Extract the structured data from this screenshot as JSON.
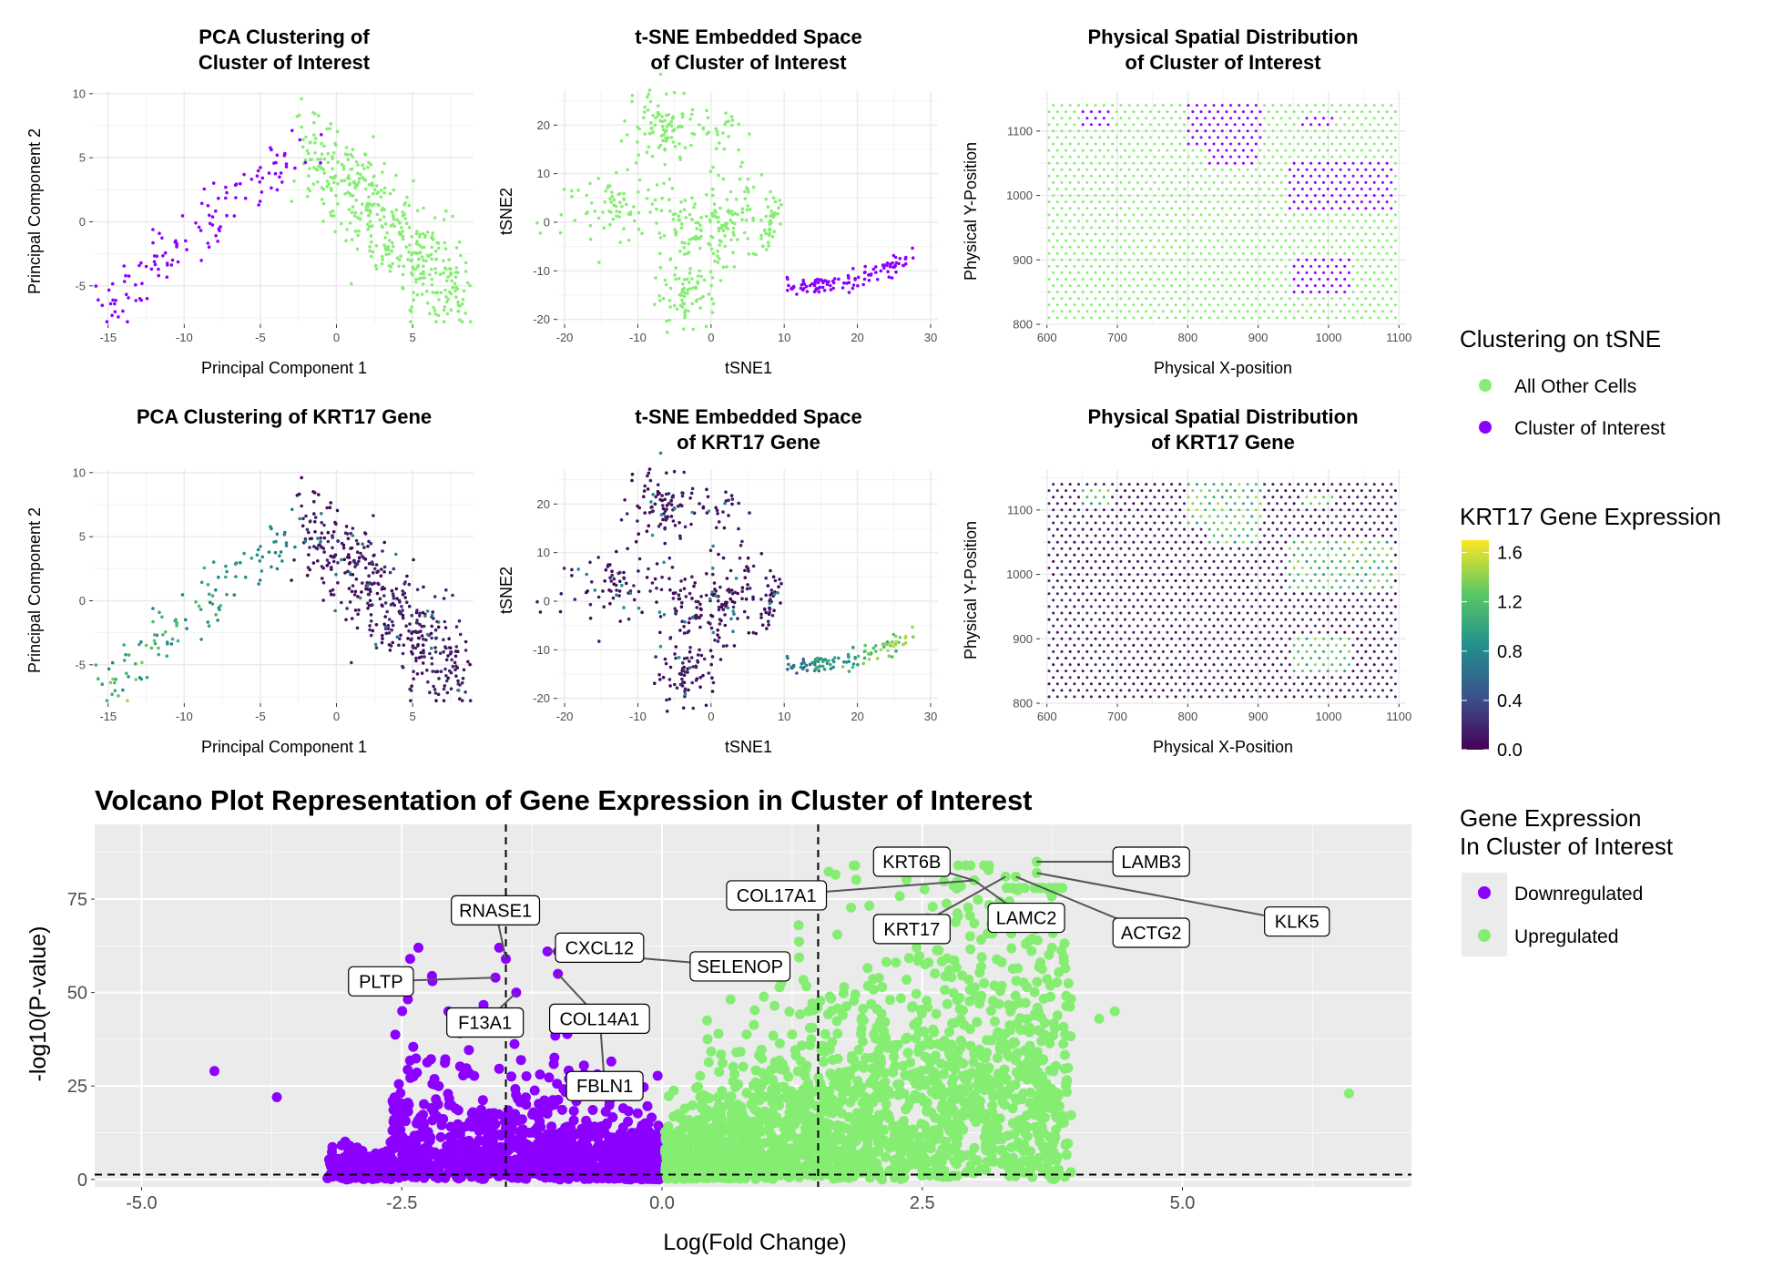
{
  "colors": {
    "cluster_of_interest": "#8B00FF",
    "all_other_cells": "#85EE72",
    "downregulated": "#8B00FF",
    "upregulated": "#85EE72",
    "viridis": [
      "#440154",
      "#3B528B",
      "#21908C",
      "#5DC863",
      "#FDE725"
    ]
  },
  "legends": {
    "clustering": {
      "title": "Clustering on tSNE",
      "items": [
        {
          "label": "All Other Cells",
          "color": "#85EE72"
        },
        {
          "label": "Cluster of Interest",
          "color": "#8B00FF"
        }
      ]
    },
    "krt17": {
      "title": "KRT17 Gene Expression",
      "ticks": [
        "1.6",
        "1.2",
        "0.8",
        "0.4",
        "0.0"
      ],
      "range": [
        0,
        1.7
      ]
    },
    "volcano": {
      "title_line1": "Gene Expression",
      "title_line2": "In Cluster of Interest",
      "items": [
        {
          "label": "Downregulated",
          "color": "#8B00FF"
        },
        {
          "label": "Upregulated",
          "color": "#85EE72"
        }
      ]
    }
  },
  "chart_data": [
    {
      "type": "scatter",
      "title_line1": "PCA Clustering of",
      "title_line2": "Cluster of Interest",
      "xlabel": "Principal Component 1",
      "ylabel": "Principal Component 2",
      "xlim": [
        -16,
        9
      ],
      "ylim": [
        -8,
        10.2
      ],
      "xticks": [
        "-15",
        "-10",
        "-5",
        "0",
        "5"
      ],
      "yticks": [
        "10",
        "5",
        "0",
        "-5"
      ],
      "color_by": "cluster"
    },
    {
      "type": "scatter",
      "title_line1": "t-SNE Embedded Space",
      "title_line2": "of Cluster of Interest",
      "xlabel": "tSNE1",
      "ylabel": "tSNE2",
      "xlim": [
        -21,
        31
      ],
      "ylim": [
        -21,
        27
      ],
      "xticks": [
        "-20",
        "-10",
        "0",
        "10",
        "20",
        "30"
      ],
      "yticks": [
        "20",
        "10",
        "0",
        "-10",
        "-20"
      ],
      "color_by": "cluster"
    },
    {
      "type": "scatter",
      "title_line1": "Physical Spatial Distribution",
      "title_line2": "of Cluster of Interest",
      "xlabel": "Physical X-position",
      "ylabel": "Physical Y-Position",
      "xlim": [
        590,
        1110
      ],
      "ylim": [
        800,
        1162
      ],
      "xticks": [
        "600",
        "700",
        "800",
        "900",
        "1000",
        "1100"
      ],
      "yticks": [
        "1100",
        "1000",
        "900",
        "800"
      ],
      "color_by": "cluster"
    },
    {
      "type": "scatter",
      "title_line1": "PCA Clustering of KRT17 Gene",
      "title_line2": "",
      "xlabel": "Principal Component 1",
      "ylabel": "Principal Component 2",
      "xlim": [
        -16,
        9
      ],
      "ylim": [
        -8,
        10.2
      ],
      "xticks": [
        "-15",
        "-10",
        "-5",
        "0",
        "5"
      ],
      "yticks": [
        "10",
        "5",
        "0",
        "-5"
      ],
      "color_by": "expression"
    },
    {
      "type": "scatter",
      "title_line1": "t-SNE Embedded Space",
      "title_line2": "of KRT17 Gene",
      "xlabel": "tSNE1",
      "ylabel": "tSNE2",
      "xlim": [
        -21,
        31
      ],
      "ylim": [
        -21,
        27
      ],
      "xticks": [
        "-20",
        "-10",
        "0",
        "10",
        "20",
        "30"
      ],
      "yticks": [
        "20",
        "10",
        "0",
        "-10",
        "-20"
      ],
      "color_by": "expression"
    },
    {
      "type": "scatter",
      "title_line1": "Physical Spatial Distribution",
      "title_line2": "of KRT17 Gene",
      "xlabel": "Physical X-Position",
      "ylabel": "Physical Y-Position",
      "xlim": [
        590,
        1110
      ],
      "ylim": [
        800,
        1162
      ],
      "xticks": [
        "600",
        "700",
        "800",
        "900",
        "1000",
        "1100"
      ],
      "yticks": [
        "1100",
        "1000",
        "900",
        "800"
      ],
      "color_by": "expression"
    },
    {
      "type": "scatter",
      "title": "Volcano Plot Representation of Gene Expression in Cluster of Interest",
      "xlabel": "Log(Fold Change)",
      "ylabel": "-log10(P-value)",
      "xlim": [
        -5.45,
        7.2
      ],
      "ylim": [
        -2,
        95
      ],
      "xticks": [
        "-5.0",
        "-2.5",
        "0.0",
        "2.5",
        "5.0"
      ],
      "yticks": [
        "75",
        "50",
        "25",
        "0"
      ],
      "thresholds": {
        "fold_change": [
          -1.5,
          1.5
        ],
        "neg_log10_p": 1.3
      },
      "labeled_genes": [
        {
          "gene": "KRT6B",
          "x": 3.0,
          "y": 80,
          "lx": 2.4,
          "ly": 85
        },
        {
          "gene": "LAMB3",
          "x": 3.6,
          "y": 85,
          "lx": 4.7,
          "ly": 85
        },
        {
          "gene": "COL17A1",
          "x": 3.0,
          "y": 80,
          "lx": 1.1,
          "ly": 76
        },
        {
          "gene": "KRT17",
          "x": 3.3,
          "y": 81,
          "lx": 2.4,
          "ly": 67
        },
        {
          "gene": "LAMC2",
          "x": 3.0,
          "y": 80,
          "lx": 3.5,
          "ly": 70
        },
        {
          "gene": "ACTG2",
          "x": 3.4,
          "y": 81,
          "lx": 4.7,
          "ly": 66
        },
        {
          "gene": "KLK5",
          "x": 3.6,
          "y": 82,
          "lx": 6.1,
          "ly": 69
        },
        {
          "gene": "RNASE1",
          "x": -1.5,
          "y": 59,
          "lx": -1.6,
          "ly": 72
        },
        {
          "gene": "CXCL12",
          "x": -1.1,
          "y": 61,
          "lx": -0.6,
          "ly": 62
        },
        {
          "gene": "SELENOP",
          "x": -1.0,
          "y": 61,
          "lx": 0.75,
          "ly": 57
        },
        {
          "gene": "PLTP",
          "x": -1.6,
          "y": 54,
          "lx": -2.7,
          "ly": 53
        },
        {
          "gene": "F13A1",
          "x": -1.4,
          "y": 50,
          "lx": -1.7,
          "ly": 42
        },
        {
          "gene": "COL14A1",
          "x": -1.0,
          "y": 55,
          "lx": -0.6,
          "ly": 43
        },
        {
          "gene": "FBLN1",
          "x": -0.6,
          "y": 44,
          "lx": -0.55,
          "ly": 25
        }
      ],
      "outliers": [
        {
          "x": -4.3,
          "y": 29
        },
        {
          "x": 6.6,
          "y": 23
        },
        {
          "x": 4.2,
          "y": 43
        },
        {
          "x": 4.35,
          "y": 45
        },
        {
          "x": -3.7,
          "y": 22
        }
      ]
    }
  ]
}
